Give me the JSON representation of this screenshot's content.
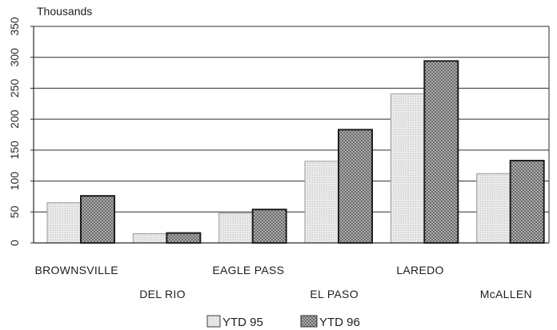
{
  "chart_data": {
    "type": "bar",
    "ylabel": "Thousands",
    "ylim": [
      0,
      350
    ],
    "yticks": [
      0,
      50,
      100,
      150,
      200,
      250,
      300,
      350
    ],
    "grid": true,
    "legend_position": "bottom",
    "categories": [
      "BROWNSVILLE",
      "DEL RIO",
      "EAGLE PASS",
      "EL PASO",
      "LAREDO",
      "McALLEN"
    ],
    "series": [
      {
        "name": "YTD 95",
        "values": [
          65,
          15,
          48,
          132,
          241,
          112
        ],
        "color": "#e9e9e9",
        "pattern": "light-dots"
      },
      {
        "name": "YTD 96",
        "values": [
          76,
          16,
          54,
          183,
          294,
          133
        ],
        "color": "#a9a9a9",
        "pattern": "dark-crosshatch"
      }
    ]
  }
}
